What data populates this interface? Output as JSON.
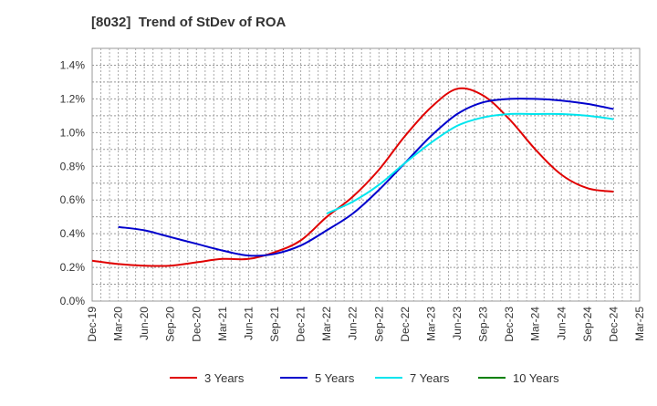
{
  "chart_data": {
    "type": "line",
    "title": "[8032]  Trend of StDev of ROA",
    "xlabel": "",
    "ylabel": "",
    "categories": [
      "Dec-19",
      "Mar-20",
      "Jun-20",
      "Sep-20",
      "Dec-20",
      "Mar-21",
      "Jun-21",
      "Sep-21",
      "Dec-21",
      "Mar-22",
      "Jun-22",
      "Sep-22",
      "Dec-22",
      "Mar-23",
      "Jun-23",
      "Sep-23",
      "Dec-23",
      "Mar-24",
      "Jun-24",
      "Sep-24",
      "Dec-24",
      "Mar-25"
    ],
    "y_tick_labels": [
      "0.0%",
      "0.2%",
      "0.4%",
      "0.6%",
      "0.8%",
      "1.0%",
      "1.2%",
      "1.4%"
    ],
    "ylim": [
      0,
      1.5
    ],
    "grid": true,
    "legend_position": "bottom",
    "series": [
      {
        "name": "3 Years",
        "color": "#e00000",
        "values": [
          0.24,
          0.22,
          0.21,
          0.21,
          0.23,
          0.25,
          0.25,
          0.29,
          0.36,
          0.5,
          0.62,
          0.78,
          0.98,
          1.15,
          1.26,
          1.22,
          1.08,
          0.9,
          0.75,
          0.67,
          0.65,
          null
        ]
      },
      {
        "name": "5 Years",
        "color": "#0000cc",
        "values": [
          null,
          0.44,
          0.42,
          0.38,
          0.34,
          0.3,
          0.27,
          0.28,
          0.33,
          0.42,
          0.52,
          0.66,
          0.82,
          0.98,
          1.11,
          1.18,
          1.2,
          1.2,
          1.19,
          1.17,
          1.14,
          null
        ]
      },
      {
        "name": "7 Years",
        "color": "#00e5ee",
        "values": [
          null,
          null,
          null,
          null,
          null,
          null,
          null,
          null,
          null,
          0.52,
          0.59,
          0.69,
          0.82,
          0.94,
          1.04,
          1.09,
          1.11,
          1.11,
          1.11,
          1.1,
          1.08,
          null
        ]
      },
      {
        "name": "10 Years",
        "color": "#008000",
        "values": [
          null,
          null,
          null,
          null,
          null,
          null,
          null,
          null,
          null,
          null,
          null,
          null,
          null,
          null,
          null,
          null,
          null,
          null,
          null,
          null,
          null,
          null
        ]
      }
    ]
  }
}
